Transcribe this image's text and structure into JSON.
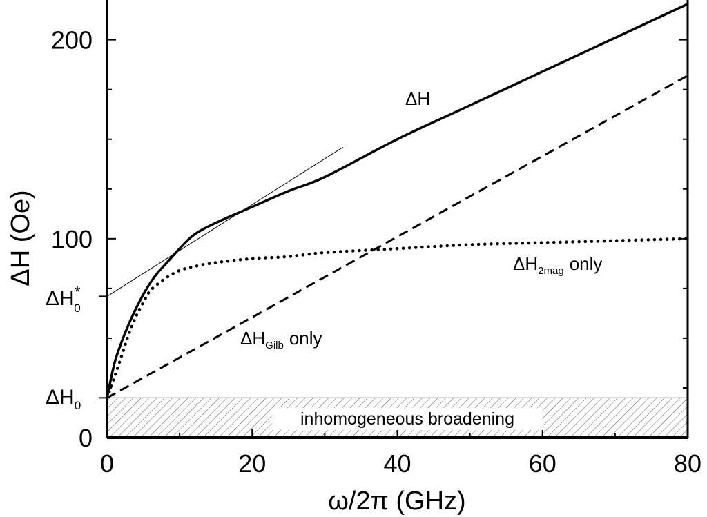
{
  "chart_data": {
    "type": "line",
    "xlabel": "ω/2π (GHz)",
    "ylabel": "ΔH (Oe)",
    "xlim": [
      0,
      80
    ],
    "ylim": [
      0,
      220
    ],
    "xticks": [
      0,
      20,
      40,
      60,
      80
    ],
    "xtick_labels": [
      "0",
      "20",
      "40",
      "60",
      "80"
    ],
    "yticks": [
      0,
      100,
      200
    ],
    "ytick_labels": [
      "0",
      "100",
      "200"
    ],
    "grid": false,
    "legend": "none",
    "series": [
      {
        "name": "ΔH",
        "style": "solid",
        "x": [
          0,
          1,
          2,
          3,
          4,
          5,
          6,
          7,
          8,
          10,
          12,
          15,
          20,
          25,
          30,
          40,
          50,
          60,
          70,
          80
        ],
        "y": [
          20,
          37,
          48,
          57,
          65,
          72,
          78,
          83,
          87,
          95,
          102,
          108,
          116,
          124,
          131,
          150,
          167,
          184,
          201,
          218
        ]
      },
      {
        "name": "ΔH_2mag only",
        "style": "dotted",
        "x": [
          0,
          1,
          2,
          3,
          4,
          5,
          6,
          8,
          10,
          12,
          15,
          20,
          25,
          30,
          40,
          50,
          60,
          70,
          80
        ],
        "y": [
          20,
          30,
          41,
          52,
          61,
          68,
          74,
          80,
          84,
          86,
          88,
          90,
          91,
          93,
          95,
          97,
          98,
          99,
          100
        ]
      },
      {
        "name": "ΔH_Gilb only",
        "style": "dashed",
        "x": [
          0,
          80
        ],
        "y": [
          20,
          182
        ]
      },
      {
        "name": "tangent",
        "style": "thin",
        "x": [
          0,
          32.5
        ],
        "y": [
          71,
          146
        ]
      }
    ],
    "annotations": {
      "dh_label": "ΔH",
      "dh2mag_main": "ΔH",
      "dh2mag_sub": "2mag",
      "dh2mag_tail": "only",
      "dhgilb_main": "ΔH",
      "dhgilb_sub": "Gilb",
      "dhgilb_tail": "only",
      "dh0star_main": "ΔH",
      "dh0star_sub": "0",
      "dh0star_sup": "*",
      "dh0_main": "ΔH",
      "dh0_sub": "0",
      "inhomogeneous": "inhomogeneous broadening"
    },
    "reference_levels": {
      "dh0": 20,
      "dh0_star": 71
    }
  }
}
